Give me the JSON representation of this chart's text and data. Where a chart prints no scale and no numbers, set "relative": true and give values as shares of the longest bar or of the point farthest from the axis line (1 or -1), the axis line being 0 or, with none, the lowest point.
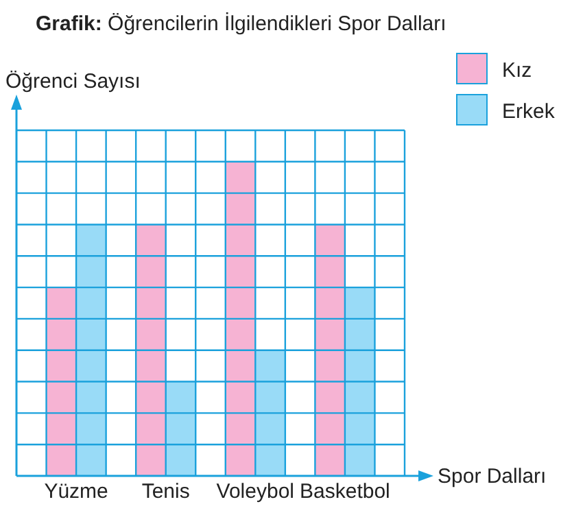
{
  "chart_data": {
    "type": "bar",
    "title": "Grafik: Öğrencilerin İlgilendikleri Spor Dalları",
    "xlabel": "Spor Dalları",
    "ylabel": "Öğrenci Sayısı",
    "relative": true,
    "grid": true,
    "legend": "top right",
    "categories": [
      "Yüzme",
      "Tenis",
      "Voleybol",
      "Basketbol"
    ],
    "series": [
      {
        "name": "Kız",
        "color": "#f6b3d3",
        "values": [
          0.6,
          0.8,
          1,
          0.8
        ]
      },
      {
        "name": "Erkek",
        "color": "#99dbf7",
        "values": [
          0.8,
          0.3,
          0.4,
          0.6
        ]
      }
    ]
  }
}
